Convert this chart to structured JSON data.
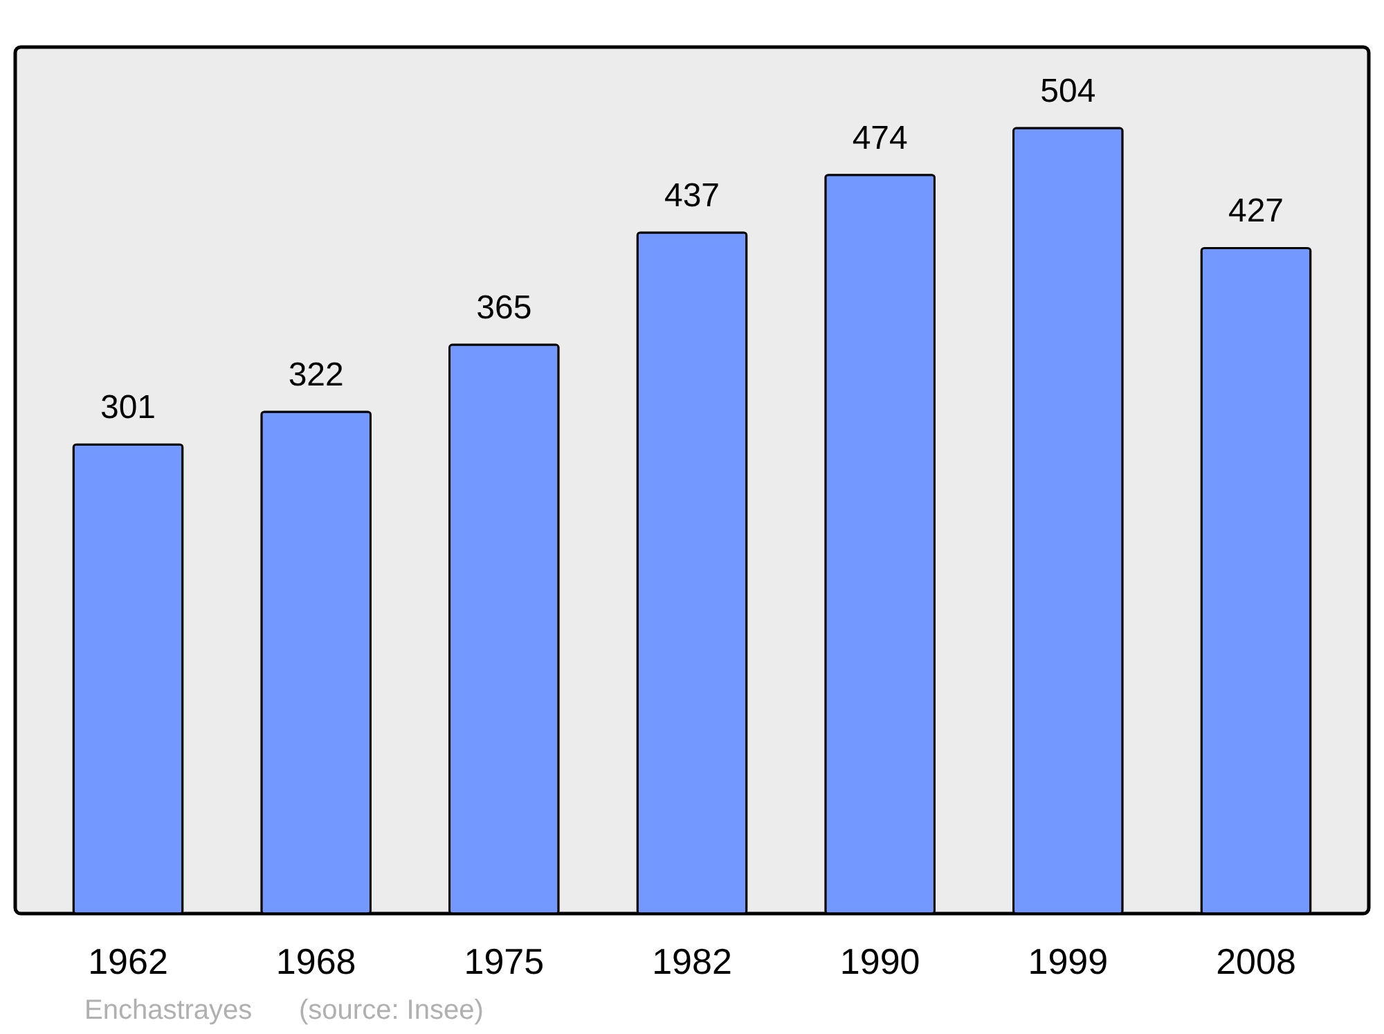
{
  "chart_data": {
    "type": "bar",
    "categories": [
      "1962",
      "1968",
      "1975",
      "1982",
      "1990",
      "1999",
      "2008"
    ],
    "values": [
      301,
      322,
      365,
      437,
      474,
      504,
      427
    ],
    "color": "#7398ff",
    "ylim": [
      0,
      556
    ],
    "data_labels": true,
    "tick_labels": "x",
    "grid": false,
    "annotations": [
      "Enchastrayes",
      "(source: Insee)"
    ]
  }
}
